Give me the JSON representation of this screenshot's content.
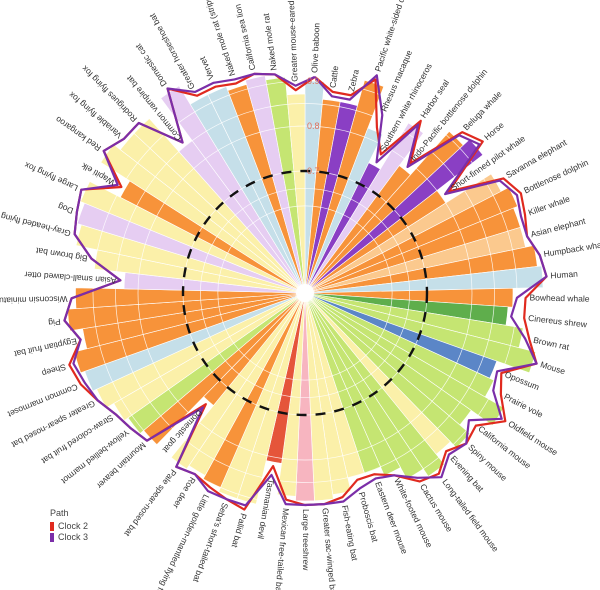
{
  "chart_data": {
    "type": "radial-bar-line",
    "title": "",
    "center": [
      305,
      293
    ],
    "r_inner_max": 215,
    "radial_axis": {
      "ticks": [
        0.7,
        0.8,
        0.9
      ],
      "tick_color": "#e0705a",
      "range": [
        0.0,
        1.0
      ]
    },
    "threshold_dashed_circle_value": 0.7,
    "legend": {
      "title": "Path",
      "entries": [
        {
          "name": "Clock 2",
          "color": "#e02a1f"
        },
        {
          "name": "Clock 3",
          "color": "#7b2ea8"
        }
      ]
    },
    "order_clockwise_from_top": true,
    "species": [
      {
        "name": "Olive baboon",
        "color": "#c5dfe9",
        "clock2": 0.91,
        "clock3": 0.91
      },
      {
        "name": "Cattle",
        "color": "#f7933a",
        "clock2": 0.88,
        "clock3": 0.87
      },
      {
        "name": "Zebra",
        "color": "#8a3fc4",
        "clock2": 0.88,
        "clock3": 0.87
      },
      {
        "name": "Pacific white-sided dolphin",
        "color": "#f7933a",
        "clock2": 0.93,
        "clock3": 0.94
      },
      {
        "name": "Rhesus macaque",
        "color": "#c5dfe9",
        "clock2": 0.83,
        "clock3": 0.86
      },
      {
        "name": "Southern white rhinoceros",
        "color": "#8a3fc4",
        "clock2": 0.78,
        "clock3": 0.76
      },
      {
        "name": "Harbor seal",
        "color": "#e6cdf2",
        "clock2": 0.89,
        "clock3": 0.88
      },
      {
        "name": "Indo-Pacific bottlenose dolphin",
        "color": "#f7933a",
        "clock2": 0.8,
        "clock3": 0.79
      },
      {
        "name": "Beluga whale",
        "color": "#f7933a",
        "clock2": 0.93,
        "clock3": 0.92
      },
      {
        "name": "Horse",
        "color": "#8a3fc4",
        "clock2": 0.95,
        "clock3": 0.94
      },
      {
        "name": "Short-finned pilot whale",
        "color": "#f7933a",
        "clock2": 0.82,
        "clock3": 0.81
      },
      {
        "name": "Savanna elephant",
        "color": "#fbc98e",
        "clock2": 0.94,
        "clock3": 0.93
      },
      {
        "name": "Bottlenose dolphin",
        "color": "#f7933a",
        "clock2": 0.96,
        "clock3": 0.95
      },
      {
        "name": "Killer whale",
        "color": "#f7933a",
        "clock2": 0.95,
        "clock3": 0.94
      },
      {
        "name": "Asian elephant",
        "color": "#fbc98e",
        "clock2": 0.94,
        "clock3": 0.94
      },
      {
        "name": "Humpback whale",
        "color": "#f7933a",
        "clock2": 0.96,
        "clock3": 0.96
      },
      {
        "name": "Human",
        "color": "#c5dfe9",
        "clock2": 0.97,
        "clock3": 0.97
      },
      {
        "name": "Bowhead whale",
        "color": "#f7933a",
        "clock2": 0.92,
        "clock3": 0.9
      },
      {
        "name": "Cinereus shrew",
        "color": "#5fae4c",
        "clock2": 0.92,
        "clock3": 0.89
      },
      {
        "name": "Brown rat",
        "color": "#c5e572",
        "clock2": 0.94,
        "clock3": 0.93
      },
      {
        "name": "Mouse",
        "color": "#c5e572",
        "clock2": 0.97,
        "clock3": 0.97
      },
      {
        "name": "Opossum",
        "color": "#5b86c7",
        "clock2": 0.9,
        "clock3": 0.89
      },
      {
        "name": "Prairie vole",
        "color": "#c5e572",
        "clock2": 0.92,
        "clock3": 0.9
      },
      {
        "name": "Oldfield mouse",
        "color": "#c5e572",
        "clock2": 0.96,
        "clock3": 0.95
      },
      {
        "name": "California mouse",
        "color": "#c5e572",
        "clock2": 0.91,
        "clock3": 0.89
      },
      {
        "name": "Spiny mouse",
        "color": "#c5e572",
        "clock2": 0.92,
        "clock3": 0.92
      },
      {
        "name": "Evening bat",
        "color": "#fbf0a9",
        "clock2": 0.9,
        "clock3": 0.91
      },
      {
        "name": "Long-tailed field mouse",
        "color": "#c5e572",
        "clock2": 0.93,
        "clock3": 0.94
      },
      {
        "name": "Cactus mouse",
        "color": "#c5e572",
        "clock2": 0.92,
        "clock3": 0.91
      },
      {
        "name": "White-footed mouse",
        "color": "#c5e572",
        "clock2": 0.88,
        "clock3": 0.88
      },
      {
        "name": "Eastern deer mouse",
        "color": "#c5e572",
        "clock2": 0.86,
        "clock3": 0.87
      },
      {
        "name": "Proboscis bat",
        "color": "#fbf0a9",
        "clock2": 0.86,
        "clock3": 0.88
      },
      {
        "name": "Fish-eating bat",
        "color": "#fbf0a9",
        "clock2": 0.89,
        "clock3": 0.9
      },
      {
        "name": "Greater sac-winged bat",
        "color": "#fbf0a9",
        "clock2": 0.9,
        "clock3": 0.9
      },
      {
        "name": "Large treeshrew",
        "color": "#f7b5c0",
        "clock2": 0.9,
        "clock3": 0.9
      },
      {
        "name": "Mexican free-tailed bat",
        "color": "#fbf0a9",
        "clock2": 0.89,
        "clock3": 0.9
      },
      {
        "name": "Tasmanian devil",
        "color": "#e5553a",
        "clock2": 0.82,
        "clock3": 0.84
      },
      {
        "name": "Pallid bat",
        "color": "#fbf0a9",
        "clock2": 0.93,
        "clock3": 0.92
      },
      {
        "name": "Seba's short-tailed bat",
        "color": "#fbf0a9",
        "clock2": 0.92,
        "clock3": 0.92
      },
      {
        "name": "Little golden-mantled flying fox",
        "color": "#f7933a",
        "clock2": 0.91,
        "clock3": 0.92
      },
      {
        "name": "Roe deer",
        "color": "#fbf0a9",
        "clock2": 0.9,
        "clock3": 0.9
      },
      {
        "name": "Pale spear-nosed bat",
        "color": "#fbf0a9",
        "clock2": 0.91,
        "clock3": 0.91
      },
      {
        "name": "Domestic goat",
        "color": "#f7933a",
        "clock2": 0.76,
        "clock3": 0.77
      },
      {
        "name": "Mountain beaver",
        "color": "#f7933a",
        "clock2": 0.91,
        "clock3": 0.91
      },
      {
        "name": "Yellow-bellied marmot",
        "color": "#c5e572",
        "clock2": 0.92,
        "clock3": 0.92
      },
      {
        "name": "Straw-colored fruit bat",
        "color": "#fbf0a9",
        "clock2": 0.93,
        "clock3": 0.93
      },
      {
        "name": "Greater spear-nosed bat",
        "color": "#fbf0a9",
        "clock2": 0.95,
        "clock3": 0.95
      },
      {
        "name": "Common marmoset",
        "color": "#c5dfe9",
        "clock2": 0.97,
        "clock3": 0.96
      },
      {
        "name": "Sheep",
        "color": "#f7933a",
        "clock2": 0.98,
        "clock3": 0.97
      },
      {
        "name": "Egyptian fruit bat",
        "color": "#f7933a",
        "clock2": 0.94,
        "clock3": 0.94
      },
      {
        "name": "Pig",
        "color": "#f7933a",
        "clock2": 0.97,
        "clock3": 0.97
      },
      {
        "name": "Wisconsin miniature pig",
        "color": "#f7933a",
        "clock2": 0.95,
        "clock3": 0.95
      },
      {
        "name": "Asian small-clawed otter",
        "color": "#e6cdf2",
        "clock2": 0.84,
        "clock3": 0.84
      },
      {
        "name": "Big brown bat",
        "color": "#fbf0a9",
        "clock2": 0.91,
        "clock3": 0.91
      },
      {
        "name": "Gray-headed flying fox",
        "color": "#fbf0a9",
        "clock2": 0.96,
        "clock3": 0.96
      },
      {
        "name": "Dog",
        "color": "#e6cdf2",
        "clock2": 0.97,
        "clock3": 0.97
      },
      {
        "name": "Large flying fox",
        "color": "#fbf0a9",
        "clock2": 0.98,
        "clock3": 0.98
      },
      {
        "name": "Wapiti elk",
        "color": "#f7933a",
        "clock2": 0.9,
        "clock3": 0.91
      },
      {
        "name": "Red kangaroo",
        "color": "#fbf0a9",
        "clock2": 0.98,
        "clock3": 0.98
      },
      {
        "name": "Variable flying fox",
        "color": "#fbf0a9",
        "clock2": 0.96,
        "clock3": 0.96
      },
      {
        "name": "Rodrigues flying fox",
        "color": "#fbf0a9",
        "clock2": 0.96,
        "clock3": 0.96
      },
      {
        "name": "Common vampire bat",
        "color": "#e6cdf2",
        "clock2": 0.86,
        "clock3": 0.86
      },
      {
        "name": "Domestic cat",
        "color": "#e6cdf2",
        "clock2": 0.98,
        "clock3": 0.98
      },
      {
        "name": "Greater horseshoe bat",
        "color": "#c5dfe9",
        "clock2": 0.93,
        "clock3": 0.94
      },
      {
        "name": "Vervet",
        "color": "#c5dfe9",
        "clock2": 0.93,
        "clock3": 0.94
      },
      {
        "name": "Naked mole rat (striped seal)",
        "color": "#f7933a",
        "clock2": 0.92,
        "clock3": 0.93
      },
      {
        "name": "California sea lion",
        "color": "#e6cdf2",
        "clock2": 0.93,
        "clock3": 0.93
      },
      {
        "name": "Naked mole rat",
        "color": "#c5e572",
        "clock2": 0.92,
        "clock3": 0.92
      },
      {
        "name": "Greater mouse-eared bat",
        "color": "#fbf0a9",
        "clock2": 0.88,
        "clock3": 0.89
      }
    ]
  },
  "legend": {
    "title": "Path",
    "items": [
      {
        "label": "Clock 2",
        "color": "#e02a1f"
      },
      {
        "label": "Clock 3",
        "color": "#7b2ea8"
      }
    ]
  },
  "axis": {
    "tick_labels": [
      "0.9",
      "0.8",
      "0.7"
    ]
  }
}
